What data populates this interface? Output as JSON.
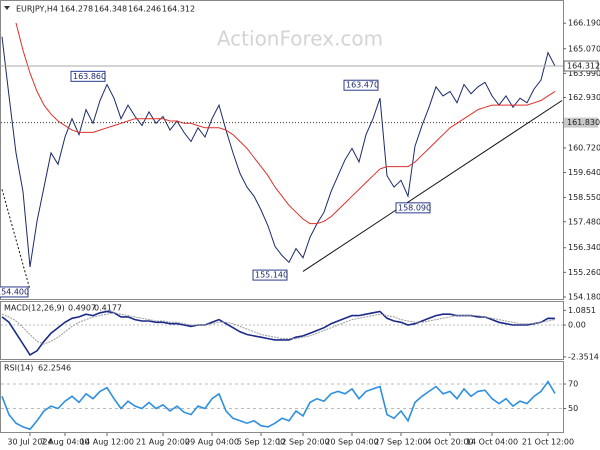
{
  "chart_data": {
    "type": "line",
    "symbol": "EURJPY,H4",
    "ohlc": [
      164.278,
      164.348,
      164.246,
      164.312
    ],
    "watermark": "ActionForex.com",
    "x_labels": [
      {
        "value": 4,
        "label": "30 Jul 2024"
      },
      {
        "value": 9,
        "label": "7 Aug 04:00"
      },
      {
        "value": 15,
        "label": "14 Aug 12:00"
      },
      {
        "value": 23,
        "label": "21 Aug 20:00"
      },
      {
        "value": 30,
        "label": "29 Aug 04:00"
      },
      {
        "value": 37,
        "label": "5 Sep 12:00"
      },
      {
        "value": 43,
        "label": "12 Sep 20:00"
      },
      {
        "value": 50,
        "label": "20 Sep 04:00"
      },
      {
        "value": 57,
        "label": "27 Sep 12:00"
      },
      {
        "value": 64,
        "label": "4 Oct 20:00"
      },
      {
        "value": 70,
        "label": "14 Oct 04:00"
      },
      {
        "value": 78,
        "label": "21 Oct 12:00"
      }
    ],
    "price": {
      "ylim": [
        154.047,
        167.165
      ],
      "yticks": [
        {
          "value": 166.19,
          "label": "166.190"
        },
        {
          "value": 165.07,
          "label": "165.070"
        },
        {
          "value": 163.99,
          "label": "163.990"
        },
        {
          "value": 162.93,
          "label": "162.930"
        },
        {
          "value": 160.72,
          "label": "160.720"
        },
        {
          "value": 159.64,
          "label": "159.640"
        },
        {
          "value": 158.55,
          "label": "158.550"
        },
        {
          "value": 157.48,
          "label": "157.480"
        },
        {
          "value": 156.34,
          "label": "156.340"
        },
        {
          "value": 155.26,
          "label": "155.260"
        },
        {
          "value": 154.18,
          "label": "154.180"
        }
      ],
      "current": 164.312,
      "level": {
        "value": 161.83,
        "label": "161.830"
      },
      "series": [
        {
          "name": "EURJPY",
          "color": "#1b2a6b",
          "values": [
            165.6,
            163.0,
            160.5,
            158.8,
            155.5,
            157.5,
            159.0,
            160.5,
            160.0,
            161.2,
            162.0,
            161.3,
            162.4,
            161.8,
            162.8,
            163.5,
            162.9,
            162.0,
            162.6,
            162.1,
            161.7,
            162.3,
            161.8,
            162.1,
            161.5,
            161.9,
            161.4,
            161.0,
            161.6,
            161.2,
            162.0,
            162.6,
            161.5,
            160.5,
            159.6,
            159.0,
            158.6,
            158.0,
            157.3,
            156.4,
            156.0,
            155.7,
            156.3,
            155.9,
            156.8,
            157.4,
            157.9,
            158.8,
            159.5,
            160.2,
            160.7,
            160.1,
            161.3,
            162.0,
            162.9,
            159.5,
            159.0,
            159.3,
            158.6,
            160.8,
            161.7,
            162.5,
            163.4,
            163.0,
            163.2,
            162.7,
            163.5,
            163.1,
            163.4,
            163.6,
            163.0,
            162.6,
            163.0,
            162.5,
            162.9,
            162.7,
            163.3,
            163.7,
            164.9,
            164.31
          ]
        },
        {
          "name": "MA",
          "color": "#e0302a",
          "values": [
            null,
            null,
            166.2,
            165.0,
            164.0,
            163.2,
            162.6,
            162.2,
            161.9,
            161.7,
            161.5,
            161.4,
            161.4,
            161.4,
            161.5,
            161.6,
            161.7,
            161.8,
            161.9,
            162.0,
            162.0,
            162.0,
            162.0,
            162.0,
            161.9,
            161.9,
            161.8,
            161.8,
            161.7,
            161.6,
            161.6,
            161.6,
            161.5,
            161.3,
            161.0,
            160.7,
            160.3,
            159.9,
            159.5,
            159.0,
            158.6,
            158.2,
            157.9,
            157.6,
            157.4,
            157.4,
            157.5,
            157.7,
            158.0,
            158.3,
            158.6,
            158.9,
            159.2,
            159.5,
            159.8,
            159.9,
            159.9,
            159.9,
            159.9,
            160.1,
            160.4,
            160.7,
            161.0,
            161.3,
            161.6,
            161.8,
            162.0,
            162.2,
            162.4,
            162.5,
            162.6,
            162.6,
            162.6,
            162.6,
            162.6,
            162.6,
            162.7,
            162.8,
            163.0,
            163.2
          ]
        }
      ],
      "trend_lines": [
        {
          "x": [
            43,
            80
          ],
          "values": [
            155.3,
            162.8
          ],
          "style": "solid"
        },
        {
          "x": [
            0,
            4
          ],
          "values": [
            158.9,
            154.5
          ],
          "style": "dotted"
        }
      ],
      "annotations": [
        {
          "x": 15,
          "value": 163.86,
          "label": "163.860",
          "side": "left"
        },
        {
          "x": 54,
          "value": 163.47,
          "label": "163.470",
          "side": "left"
        },
        {
          "x": 56,
          "value": 158.09,
          "label": "158.090",
          "side": "right"
        },
        {
          "x": 41,
          "value": 155.14,
          "label": "155.140",
          "side": "left"
        },
        {
          "x": 4,
          "value": 154.4,
          "label": "154.400",
          "side": "left"
        }
      ]
    },
    "macd": {
      "title": "MACD(12,26,9)",
      "readout": [
        0.4907,
        0.4177
      ],
      "ylim": [
        -2.58,
        1.7
      ],
      "yticks": [
        1.0851,
        {
          "value": 0,
          "label": "0.00"
        },
        -2.3514
      ],
      "series": [
        {
          "name": "MACD",
          "color": "#1b2a8b",
          "values": [
            0.6,
            0.2,
            -0.6,
            -1.4,
            -2.2,
            -1.9,
            -1.2,
            -0.6,
            -0.2,
            0.2,
            0.5,
            0.6,
            0.8,
            0.7,
            0.9,
            1.0,
            0.9,
            0.6,
            0.6,
            0.4,
            0.3,
            0.3,
            0.2,
            0.2,
            0.1,
            0.1,
            0.0,
            -0.1,
            0.0,
            0.0,
            0.2,
            0.4,
            0.1,
            -0.2,
            -0.5,
            -0.7,
            -0.8,
            -0.9,
            -1.0,
            -1.1,
            -1.1,
            -1.1,
            -0.9,
            -0.8,
            -0.6,
            -0.4,
            -0.2,
            0.1,
            0.3,
            0.5,
            0.7,
            0.7,
            0.8,
            0.9,
            1.0,
            0.5,
            0.3,
            0.2,
            0.0,
            0.1,
            0.3,
            0.5,
            0.7,
            0.8,
            0.8,
            0.7,
            0.7,
            0.7,
            0.6,
            0.6,
            0.4,
            0.2,
            0.1,
            0.0,
            0.0,
            0.0,
            0.1,
            0.2,
            0.5,
            0.4907
          ]
        },
        {
          "name": "Signal",
          "color": "#9a9a9a",
          "values": [
            0.8,
            0.6,
            0.3,
            -0.2,
            -0.7,
            -1.2,
            -1.4,
            -1.2,
            -0.9,
            -0.5,
            -0.1,
            0.2,
            0.4,
            0.6,
            0.7,
            0.8,
            0.9,
            0.8,
            0.7,
            0.6,
            0.5,
            0.4,
            0.3,
            0.3,
            0.2,
            0.2,
            0.1,
            0.0,
            0.0,
            0.0,
            0.1,
            0.2,
            0.2,
            0.1,
            -0.1,
            -0.3,
            -0.5,
            -0.7,
            -0.8,
            -0.9,
            -1.0,
            -1.0,
            -1.0,
            -0.9,
            -0.8,
            -0.6,
            -0.4,
            -0.2,
            0.0,
            0.2,
            0.4,
            0.5,
            0.6,
            0.7,
            0.8,
            0.7,
            0.6,
            0.4,
            0.3,
            0.2,
            0.2,
            0.3,
            0.4,
            0.5,
            0.6,
            0.7,
            0.7,
            0.7,
            0.7,
            0.6,
            0.5,
            0.4,
            0.3,
            0.2,
            0.1,
            0.1,
            0.1,
            0.2,
            0.3,
            0.4177
          ]
        }
      ]
    },
    "rsi": {
      "title": "RSI(14)",
      "readout": 62.2546,
      "ylim": [
        30,
        88
      ],
      "yticks": [
        70,
        50
      ],
      "series": [
        {
          "name": "RSI",
          "color": "#2f8fe0",
          "values": [
            60,
            45,
            38,
            35,
            33,
            40,
            48,
            52,
            50,
            56,
            60,
            55,
            62,
            58,
            64,
            67,
            58,
            50,
            56,
            52,
            50,
            55,
            50,
            53,
            48,
            52,
            47,
            45,
            52,
            50,
            58,
            62,
            48,
            42,
            40,
            38,
            40,
            36,
            35,
            38,
            42,
            40,
            48,
            44,
            55,
            58,
            56,
            62,
            64,
            62,
            66,
            58,
            64,
            66,
            68,
            45,
            42,
            48,
            40,
            55,
            60,
            64,
            68,
            62,
            64,
            58,
            66,
            60,
            64,
            65,
            58,
            54,
            58,
            52,
            56,
            54,
            60,
            64,
            72,
            62.2546
          ]
        }
      ]
    }
  }
}
